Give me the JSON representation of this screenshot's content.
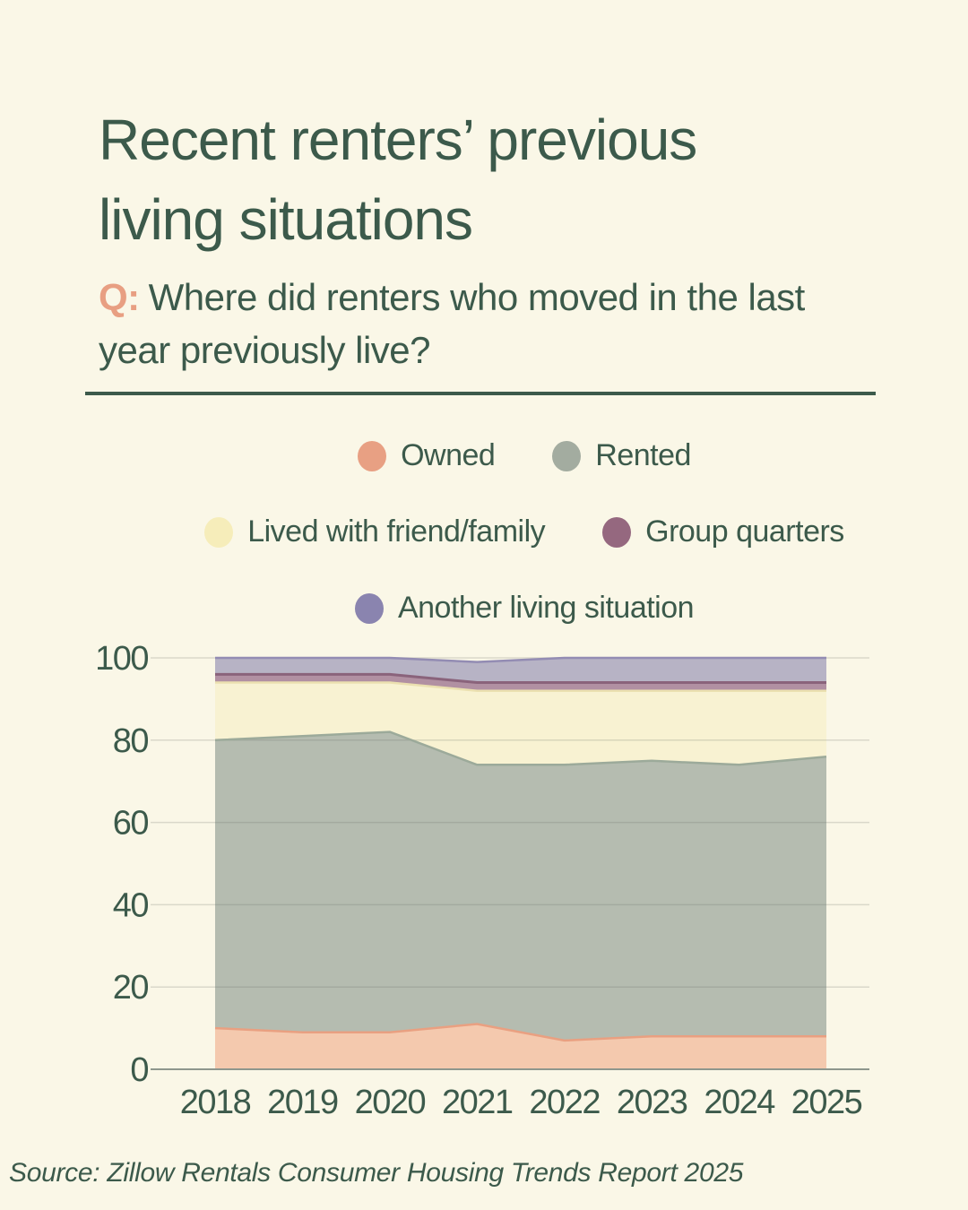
{
  "header": {
    "title_line1": "Recent renters’ previous",
    "title_line2": "living situations",
    "question_prefix": "Q:",
    "question_line1": "Where did renters who moved in the last",
    "question_line2": "year previously live?"
  },
  "footer": {
    "source": "Source: Zillow Rentals Consumer Housing Trends Report 2025"
  },
  "colors": {
    "background": "#FAF7E7",
    "text_green": "#3C5A4B",
    "accent_salmon": "#E89F82",
    "divider": "#3C5A4B",
    "gridline": "rgba(105,110,100,0.22)",
    "axis_line": "#8E978D"
  },
  "chart_data": {
    "type": "area",
    "stacked": true,
    "title": "Recent renters' previous living situations",
    "xlabel": "",
    "ylabel": "",
    "categories": [
      "2018",
      "2019",
      "2020",
      "2021",
      "2022",
      "2023",
      "2024",
      "2025"
    ],
    "series": [
      {
        "name": "Owned",
        "values": [
          10,
          9,
          9,
          11,
          7,
          8,
          8,
          8
        ],
        "fill": "#F4C9AE",
        "stroke": "#E9A081",
        "legend_color": "#E8A083"
      },
      {
        "name": "Rented",
        "values": [
          70,
          72,
          73,
          63,
          67,
          67,
          66,
          68
        ],
        "fill": "#B5BCB0",
        "stroke": "#9CAA9A",
        "legend_color": "#A3ACA0"
      },
      {
        "name": "Lived with friend/family",
        "values": [
          14,
          13,
          12,
          18,
          18,
          17,
          18,
          16
        ],
        "fill": "#F8F2D2",
        "stroke": "#EBE0B0",
        "legend_color": "#F6EDBA"
      },
      {
        "name": "Group quarters",
        "values": [
          2,
          2,
          2,
          2,
          2,
          2,
          2,
          2
        ],
        "fill": "#B190A2",
        "stroke": "#8A637B",
        "legend_color": "#95687F"
      },
      {
        "name": "Another living situation",
        "values": [
          4,
          4,
          4,
          5,
          6,
          6,
          6,
          6
        ],
        "fill": "#B7B3C5",
        "stroke": "#938CB3",
        "legend_color": "#8A84AF"
      }
    ],
    "legend_rows": [
      [
        0,
        1
      ],
      [
        2,
        3
      ],
      [
        4
      ]
    ],
    "legend_position": "top",
    "ylim": [
      0,
      100
    ],
    "yticks": [
      0,
      20,
      40,
      60,
      80,
      100
    ],
    "grid": true
  }
}
